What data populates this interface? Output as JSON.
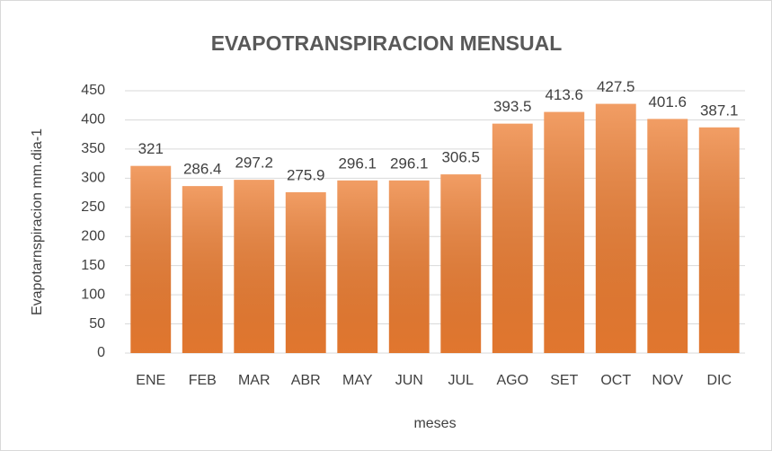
{
  "chart_data": {
    "type": "bar",
    "title": "EVAPOTRANSPIRACION MENSUAL",
    "x_label": "meses",
    "y_label": "Evapotarnspiracion mm.dia-1",
    "categories": [
      "ENE",
      "FEB",
      "MAR",
      "ABR",
      "MAY",
      "JUN",
      "JUL",
      "AGO",
      "SET",
      "OCT",
      "NOV",
      "DIC"
    ],
    "values": [
      321,
      286.4,
      297.2,
      275.9,
      296.1,
      296.1,
      306.5,
      393.5,
      413.6,
      427.5,
      401.6,
      387.1
    ],
    "color": "#ed7d31",
    "ylim": [
      0,
      450
    ],
    "yticks": [
      0,
      50,
      100,
      150,
      200,
      250,
      300,
      350,
      400,
      450
    ],
    "grid": true
  }
}
